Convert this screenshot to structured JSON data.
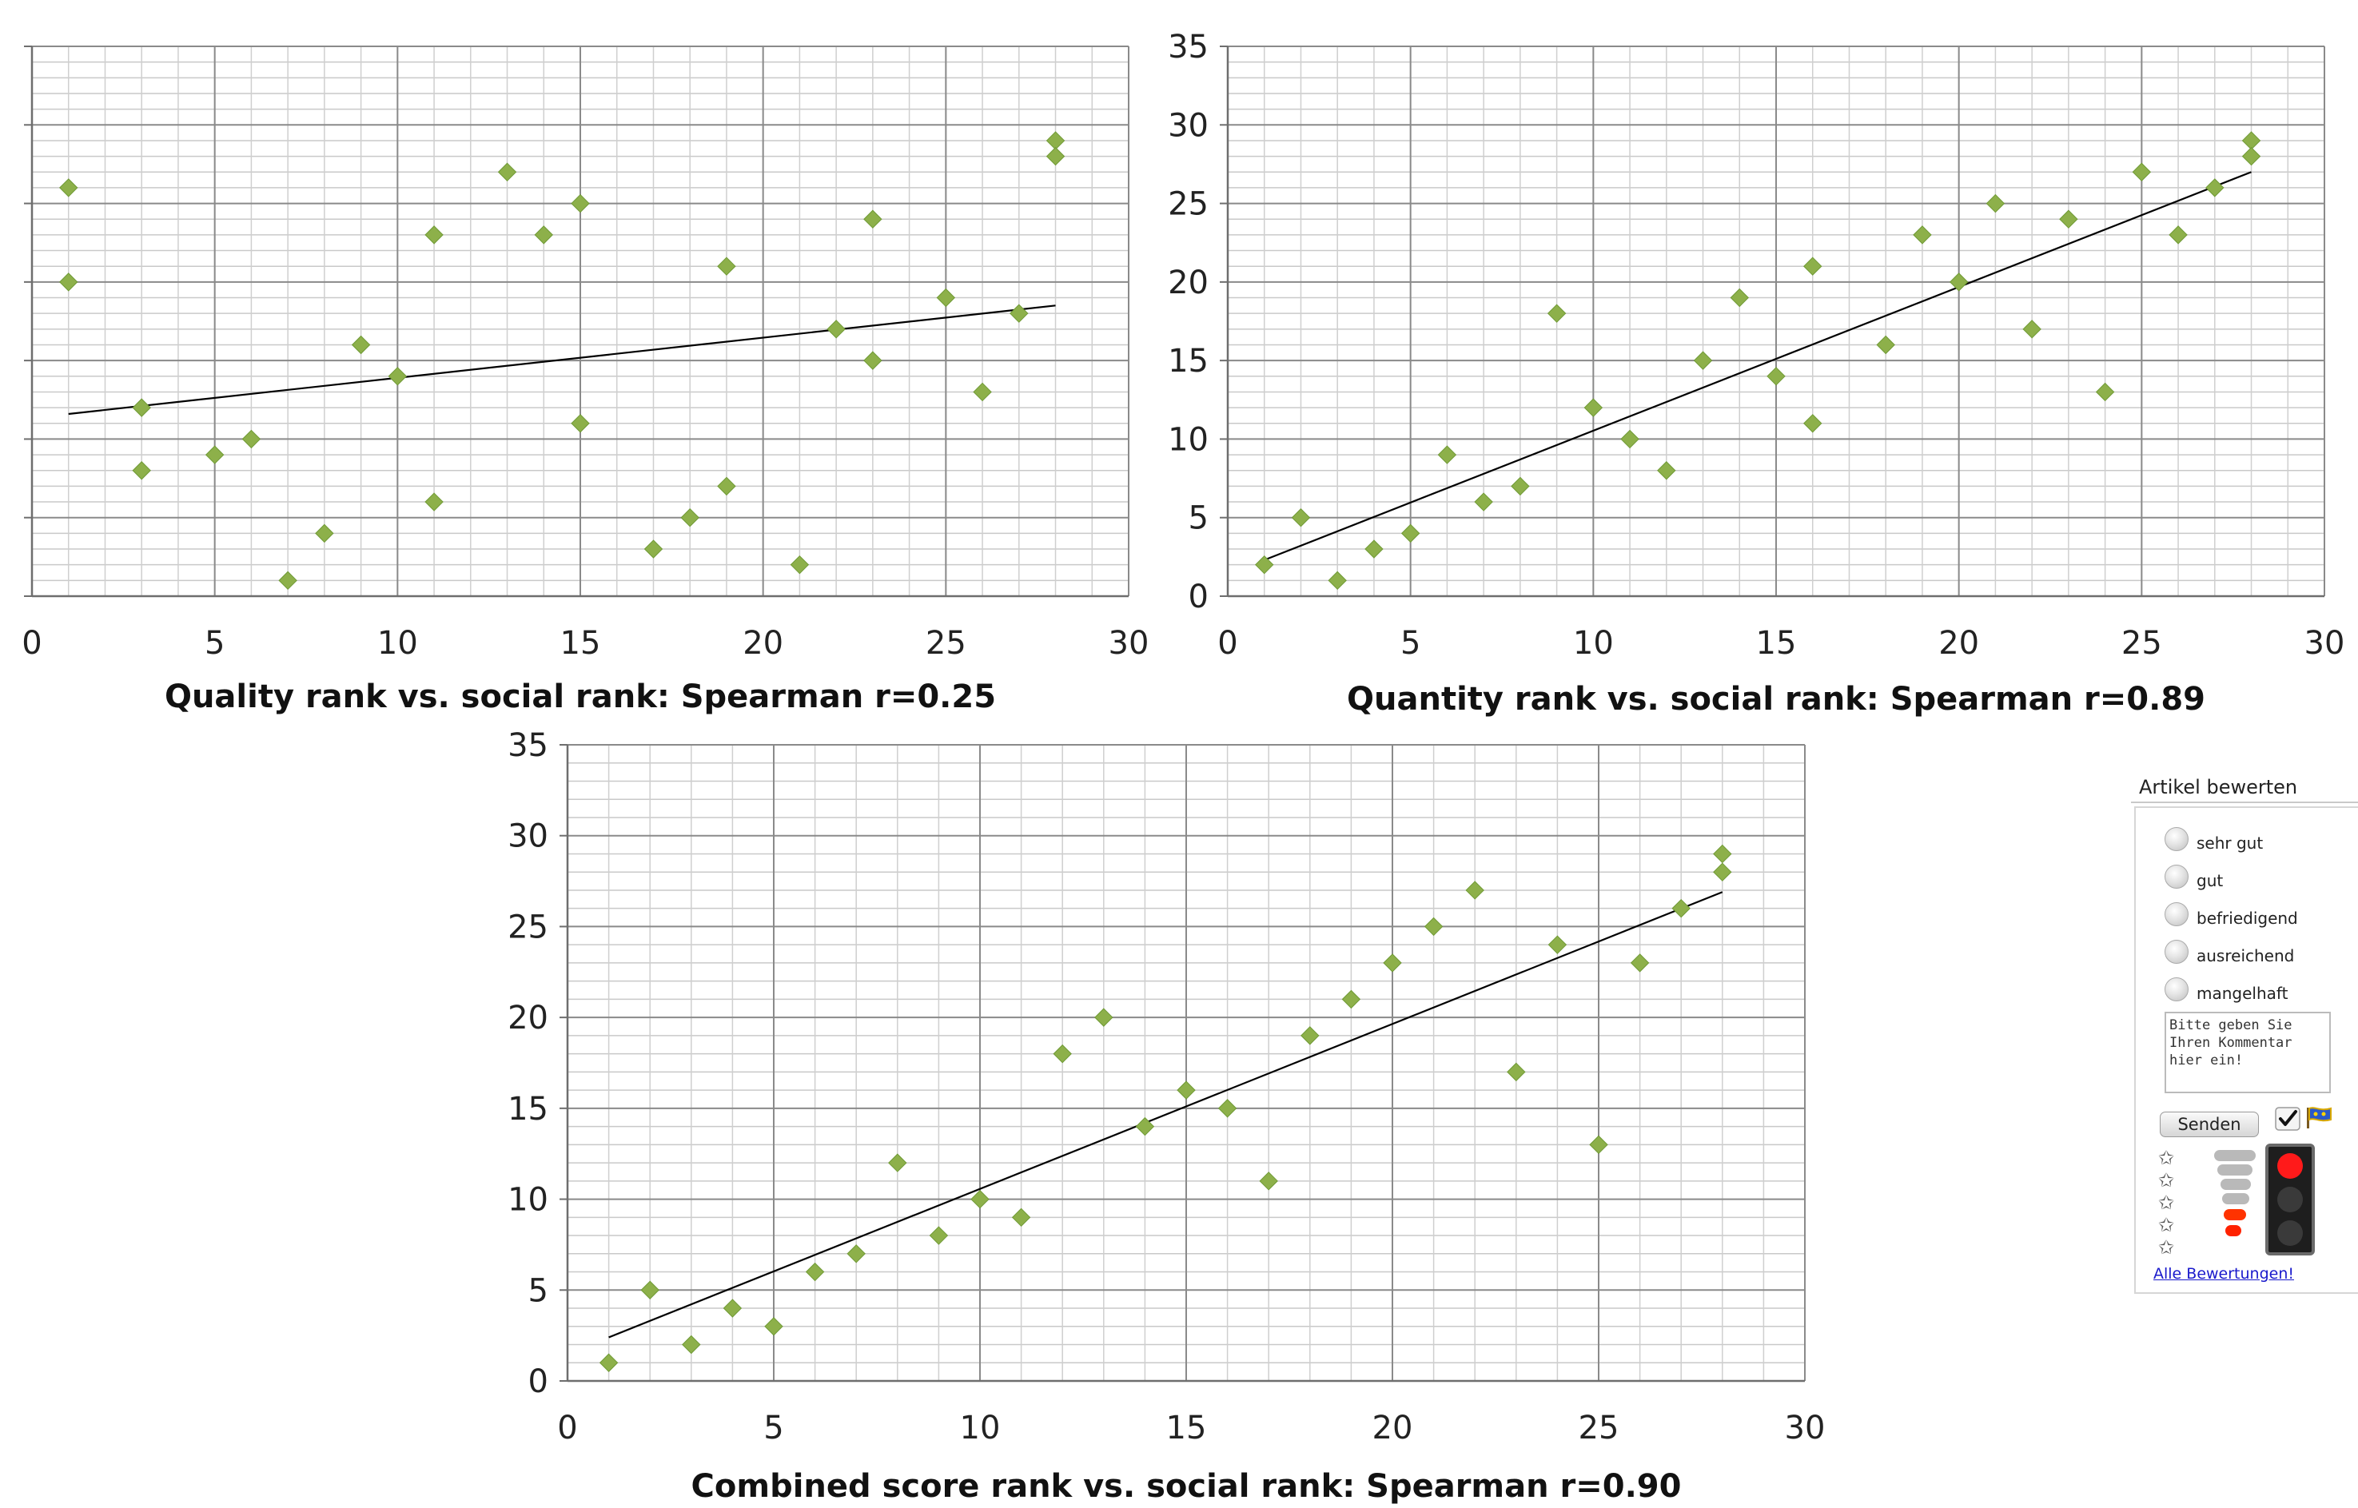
{
  "chart_data": [
    {
      "type": "scatter",
      "title": "Quality rank vs. social rank: Spearman r=0.25",
      "xlim": [
        0,
        30
      ],
      "ylim": [
        0,
        35
      ],
      "xticks": [
        0,
        5,
        10,
        15,
        20,
        25,
        30
      ],
      "yticks": [
        0,
        5,
        10,
        15,
        20,
        25,
        30,
        35
      ],
      "show_y_tick_labels": false,
      "grid": true,
      "marker_color": "#8db04a",
      "points": [
        [
          1,
          26
        ],
        [
          1,
          20
        ],
        [
          3,
          12
        ],
        [
          3,
          8
        ],
        [
          5,
          9
        ],
        [
          6,
          10
        ],
        [
          7,
          1
        ],
        [
          8,
          4
        ],
        [
          9,
          16
        ],
        [
          10,
          14
        ],
        [
          11,
          23
        ],
        [
          11,
          6
        ],
        [
          13,
          27
        ],
        [
          14,
          23
        ],
        [
          15,
          25
        ],
        [
          15,
          11
        ],
        [
          17,
          3
        ],
        [
          18,
          5
        ],
        [
          19,
          21
        ],
        [
          19,
          7
        ],
        [
          21,
          2
        ],
        [
          22,
          17
        ],
        [
          23,
          24
        ],
        [
          23,
          15
        ],
        [
          25,
          19
        ],
        [
          26,
          13
        ],
        [
          27,
          18
        ],
        [
          28,
          29
        ],
        [
          28,
          28
        ]
      ],
      "trendline": [
        [
          1,
          11.6
        ],
        [
          28,
          18.5
        ]
      ]
    },
    {
      "type": "scatter",
      "title": "Quantity rank vs. social rank: Spearman r=0.89",
      "xlim": [
        0,
        30
      ],
      "ylim": [
        0,
        35
      ],
      "xticks": [
        0,
        5,
        10,
        15,
        20,
        25,
        30
      ],
      "yticks": [
        0,
        5,
        10,
        15,
        20,
        25,
        30,
        35
      ],
      "show_y_tick_labels": true,
      "grid": true,
      "marker_color": "#8db04a",
      "points": [
        [
          1,
          2
        ],
        [
          2,
          5
        ],
        [
          3,
          1
        ],
        [
          4,
          3
        ],
        [
          5,
          4
        ],
        [
          6,
          9
        ],
        [
          7,
          6
        ],
        [
          8,
          7
        ],
        [
          9,
          18
        ],
        [
          10,
          12
        ],
        [
          11,
          10
        ],
        [
          12,
          8
        ],
        [
          13,
          15
        ],
        [
          14,
          19
        ],
        [
          15,
          14
        ],
        [
          16,
          21
        ],
        [
          16,
          11
        ],
        [
          18,
          16
        ],
        [
          19,
          23
        ],
        [
          20,
          20
        ],
        [
          21,
          25
        ],
        [
          22,
          17
        ],
        [
          23,
          24
        ],
        [
          24,
          13
        ],
        [
          25,
          27
        ],
        [
          26,
          23
        ],
        [
          27,
          26
        ],
        [
          28,
          29
        ],
        [
          28,
          28
        ]
      ],
      "trendline": [
        [
          1,
          2.3
        ],
        [
          28,
          27
        ]
      ]
    },
    {
      "type": "scatter",
      "title": "Combined score rank vs. social rank: Spearman r=0.90",
      "xlim": [
        0,
        30
      ],
      "ylim": [
        0,
        35
      ],
      "xticks": [
        0,
        5,
        10,
        15,
        20,
        25,
        30
      ],
      "yticks": [
        0,
        5,
        10,
        15,
        20,
        25,
        30,
        35
      ],
      "show_y_tick_labels": true,
      "grid": true,
      "marker_color": "#8db04a",
      "points": [
        [
          1,
          1
        ],
        [
          2,
          5
        ],
        [
          3,
          2
        ],
        [
          4,
          4
        ],
        [
          5,
          3
        ],
        [
          6,
          6
        ],
        [
          7,
          7
        ],
        [
          8,
          12
        ],
        [
          9,
          8
        ],
        [
          10,
          10
        ],
        [
          11,
          9
        ],
        [
          12,
          18
        ],
        [
          13,
          20
        ],
        [
          14,
          14
        ],
        [
          15,
          16
        ],
        [
          16,
          15
        ],
        [
          17,
          11
        ],
        [
          18,
          19
        ],
        [
          19,
          21
        ],
        [
          20,
          23
        ],
        [
          21,
          25
        ],
        [
          22,
          27
        ],
        [
          23,
          17
        ],
        [
          24,
          24
        ],
        [
          25,
          13
        ],
        [
          26,
          23
        ],
        [
          27,
          26
        ],
        [
          28,
          29
        ],
        [
          28,
          28
        ]
      ],
      "trendline": [
        [
          1,
          2.4
        ],
        [
          28,
          26.9
        ]
      ]
    }
  ],
  "widget": {
    "title": "Artikel bewerten",
    "options": [
      {
        "label": "sehr gut"
      },
      {
        "label": "gut"
      },
      {
        "label": "befriedigend"
      },
      {
        "label": "ausreichend"
      },
      {
        "label": "mangelhaft"
      }
    ],
    "comment_text": "Bitte geben Sie Ihren Kommentar hier ein!",
    "send_label": "Senden",
    "link_label": "Alle Bewertungen!",
    "check_icon": "checkmark-icon",
    "flag_icon": "flag-icon",
    "star_icon": "star-icon",
    "traffic_light_icon": "traffic-light-icon",
    "traffic_light_active": "red",
    "bar_colors": [
      "#b9b9b9",
      "#b9b9b9",
      "#b9b9b9",
      "#b9b9b9",
      "#ff3300",
      "#ff2200"
    ]
  }
}
